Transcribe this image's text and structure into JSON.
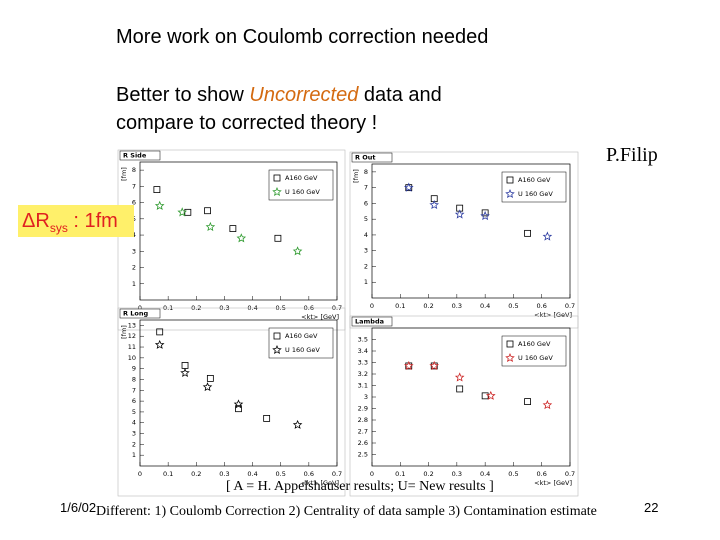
{
  "slide": {
    "title": "More work on Coulomb correction needed",
    "line1_pre": "Better to show ",
    "line1_em": "Uncorrected",
    "line1_post": " data and",
    "line2": "compare to corrected theory !",
    "author": "P.Filip",
    "annotation": {
      "main": "ΔR",
      "sub": "sys",
      "rest": " :  1fm"
    },
    "legend_note": "[ A = H. Appelshauser results; U= New results ]",
    "date": "1/6/02",
    "footer": "Different: 1) Coulomb Correction 2) Centrality of data sample 3) Contamination estimate",
    "page": "22"
  },
  "chart_data": [
    {
      "type": "scatter",
      "title": "R Side",
      "ylabel": "[fm]",
      "xlabel": "<kt> [GeV]",
      "xlim": [
        0,
        0.7
      ],
      "xticks": [
        0,
        0.1,
        0.2,
        0.3,
        0.4,
        0.5,
        0.6,
        0.7
      ],
      "ylim": [
        0,
        8.5
      ],
      "yticks": [
        1,
        2,
        3,
        4,
        5,
        6,
        7,
        8
      ],
      "series": [
        {
          "name": "A160 GeV",
          "marker": "square",
          "color": "#000000",
          "x": [
            0.06,
            0.17,
            0.24,
            0.33,
            0.49
          ],
          "values": [
            6.8,
            5.4,
            5.5,
            4.4,
            3.8
          ]
        },
        {
          "name": "U 160 GeV",
          "marker": "star",
          "color": "#2e9a2e",
          "x": [
            0.07,
            0.15,
            0.25,
            0.36,
            0.56
          ],
          "values": [
            5.8,
            5.4,
            4.5,
            3.8,
            3.0
          ]
        }
      ]
    },
    {
      "type": "scatter",
      "title": "R Out",
      "ylabel": "[fm]",
      "xlabel": "<kt> [GeV]",
      "xlim": [
        0,
        0.7
      ],
      "xticks": [
        0,
        0.1,
        0.2,
        0.3,
        0.4,
        0.5,
        0.6,
        0.7
      ],
      "ylim": [
        0,
        8.5
      ],
      "yticks": [
        1,
        2,
        3,
        4,
        5,
        6,
        7,
        8
      ],
      "series": [
        {
          "name": "A160 GeV",
          "marker": "square",
          "color": "#000000",
          "x": [
            0.13,
            0.22,
            0.31,
            0.4,
            0.55
          ],
          "values": [
            7.0,
            6.3,
            5.7,
            5.4,
            4.1
          ]
        },
        {
          "name": "U 160 GeV",
          "marker": "star",
          "color": "#2a3aa0",
          "x": [
            0.13,
            0.22,
            0.31,
            0.4,
            0.62
          ],
          "values": [
            7.0,
            5.9,
            5.3,
            5.2,
            3.9
          ]
        }
      ]
    },
    {
      "type": "scatter",
      "title": "R Long",
      "ylabel": "[fm]",
      "xlabel": "<kt> [GeV]",
      "xlim": [
        0,
        0.7
      ],
      "xticks": [
        0,
        0.1,
        0.2,
        0.3,
        0.4,
        0.5,
        0.6,
        0.7
      ],
      "ylim": [
        0,
        13.5
      ],
      "yticks": [
        1,
        2,
        3,
        4,
        5,
        6,
        7,
        8,
        9,
        10,
        11,
        12,
        13
      ],
      "series": [
        {
          "name": "A160 GeV",
          "marker": "square",
          "color": "#000000",
          "x": [
            0.07,
            0.16,
            0.25,
            0.35,
            0.45
          ],
          "values": [
            12.4,
            9.3,
            8.1,
            5.3,
            4.4
          ]
        },
        {
          "name": "U 160 GeV",
          "marker": "star",
          "color": "#000000",
          "x": [
            0.07,
            0.16,
            0.24,
            0.35,
            0.56
          ],
          "values": [
            11.2,
            8.6,
            7.3,
            5.7,
            3.8
          ]
        }
      ]
    },
    {
      "type": "scatter",
      "title": "Lambda",
      "xlabel": "<kt> [GeV]",
      "xlim": [
        0,
        0.7
      ],
      "xticks": [
        0,
        0.1,
        0.2,
        0.3,
        0.4,
        0.5,
        0.6,
        0.7
      ],
      "ylim": [
        2.4,
        3.6
      ],
      "yticks": [
        2.5,
        2.6,
        2.7,
        2.8,
        2.9,
        3,
        3.1,
        3.2,
        3.3,
        3.4,
        3.5
      ],
      "series": [
        {
          "name": "A160 GeV",
          "marker": "square",
          "color": "#000000",
          "x": [
            0.13,
            0.22,
            0.31,
            0.4,
            0.55
          ],
          "values": [
            3.27,
            3.27,
            3.07,
            3.01,
            2.96
          ]
        },
        {
          "name": "U 160 GeV",
          "marker": "star",
          "color": "#cc2222",
          "x": [
            0.13,
            0.22,
            0.31,
            0.42,
            0.62
          ],
          "values": [
            3.27,
            3.27,
            3.17,
            3.01,
            2.93
          ]
        }
      ]
    }
  ]
}
